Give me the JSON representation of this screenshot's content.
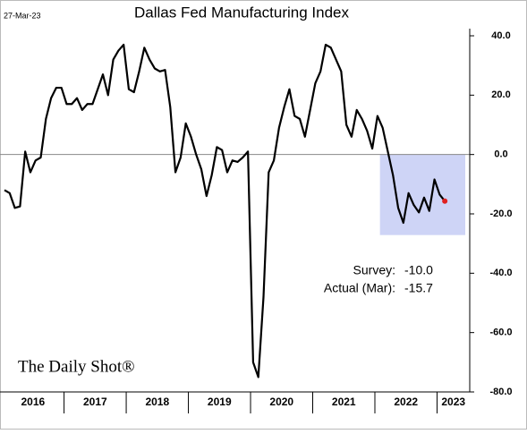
{
  "chart_data": {
    "type": "line",
    "title": "Dallas Fed Manufacturing Index",
    "date": "27-Mar-23",
    "source": "The Daily Shot®",
    "year_labels": [
      "2016",
      "2017",
      "2018",
      "2019",
      "2020",
      "2021",
      "2022",
      "2023"
    ],
    "values": [
      -12,
      -13,
      -18,
      -17.5,
      1,
      -6,
      -2,
      -1,
      12,
      19,
      22.5,
      22.5,
      17,
      17,
      19,
      15,
      17,
      17,
      22,
      27,
      20,
      32,
      35,
      37,
      22,
      21,
      28,
      36,
      32,
      29,
      28,
      28.5,
      16,
      -6,
      -1,
      10.5,
      6,
      0,
      -5,
      -14,
      -7,
      2.5,
      1.5,
      -6,
      -2,
      -2.5,
      -1,
      1,
      -70,
      -75,
      -48,
      -6,
      -2,
      9,
      16,
      22,
      13,
      12,
      6,
      15,
      24,
      28,
      37,
      36,
      32,
      28,
      10,
      6,
      15,
      12,
      8,
      2,
      13,
      9,
      1,
      -7,
      -18,
      -23,
      -13,
      -17,
      -19.5,
      -14.5,
      -19,
      -8.4,
      -13.5,
      -15.7
    ],
    "color": "#000000",
    "last_point_color": "#e02020",
    "highlight_color": "#c5cdf5",
    "zero_line": true,
    "ylim": [
      -80,
      40
    ],
    "yticks": [
      {
        "value": 40,
        "label": "40.0"
      },
      {
        "value": 20,
        "label": "20.0"
      },
      {
        "value": 0,
        "label": "0.0"
      },
      {
        "value": -20,
        "label": "-20.0"
      },
      {
        "value": -40,
        "label": "-40.0"
      },
      {
        "value": -60,
        "label": "-60.0"
      },
      {
        "value": -80,
        "label": "-80.0"
      }
    ],
    "annotations": [
      {
        "label": "Survey:",
        "value": "-10.0"
      },
      {
        "label": "Actual (Mar):",
        "value": "-15.7"
      }
    ]
  }
}
